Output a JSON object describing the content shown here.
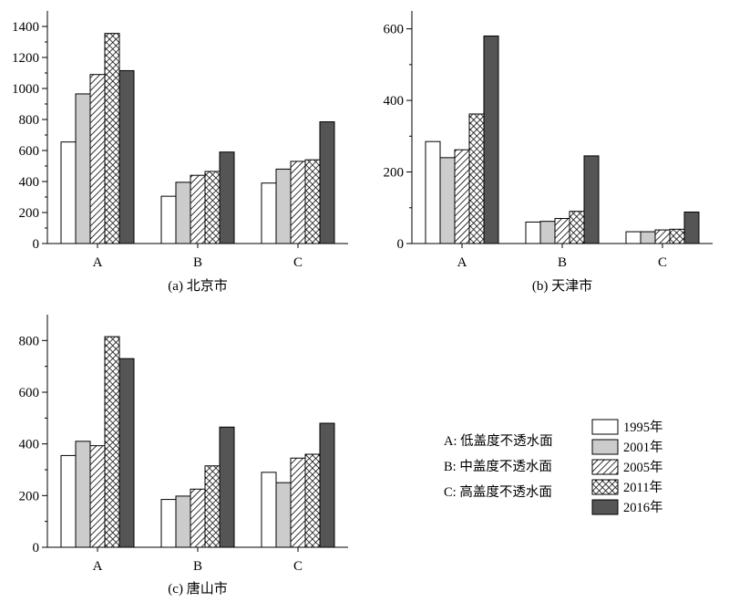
{
  "legend": {
    "series": [
      {
        "name": "1995年",
        "fill": "#ffffff",
        "pattern": "none"
      },
      {
        "name": "2001年",
        "fill": "#cccccc",
        "pattern": "none"
      },
      {
        "name": "2005年",
        "fill": "#ffffff",
        "pattern": "diagonal-hatch"
      },
      {
        "name": "2011年",
        "fill": "#ffffff",
        "pattern": "crosshatch"
      },
      {
        "name": "2016年",
        "fill": "#555555",
        "pattern": "none"
      }
    ],
    "category_key": [
      "A: 低盖度不透水面",
      "B: 中盖度不透水面",
      "C: 高盖度不透水面"
    ]
  },
  "chart_data": [
    {
      "type": "bar",
      "caption": "(a) 北京市",
      "categories": [
        "A",
        "B",
        "C"
      ],
      "series": [
        {
          "name": "1995年",
          "values": [
            655,
            305,
            390
          ]
        },
        {
          "name": "2001年",
          "values": [
            965,
            395,
            480
          ]
        },
        {
          "name": "2005年",
          "values": [
            1090,
            440,
            530
          ]
        },
        {
          "name": "2011年",
          "values": [
            1355,
            465,
            540
          ]
        },
        {
          "name": "2016年",
          "values": [
            1115,
            590,
            785
          ]
        }
      ],
      "ylim": [
        0,
        1500
      ],
      "yticks": [
        0,
        200,
        400,
        600,
        800,
        1000,
        1200,
        1400
      ]
    },
    {
      "type": "bar",
      "caption": "(b) 天津市",
      "categories": [
        "A",
        "B",
        "C"
      ],
      "series": [
        {
          "name": "1995年",
          "values": [
            285,
            60,
            33
          ]
        },
        {
          "name": "2001年",
          "values": [
            240,
            62,
            33
          ]
        },
        {
          "name": "2005年",
          "values": [
            262,
            70,
            38
          ]
        },
        {
          "name": "2011年",
          "values": [
            362,
            90,
            40
          ]
        },
        {
          "name": "2016年",
          "values": [
            580,
            245,
            88
          ]
        }
      ],
      "ylim": [
        0,
        650
      ],
      "yticks": [
        0,
        200,
        400,
        600
      ]
    },
    {
      "type": "bar",
      "caption": "(c) 唐山市",
      "categories": [
        "A",
        "B",
        "C"
      ],
      "series": [
        {
          "name": "1995年",
          "values": [
            355,
            185,
            290
          ]
        },
        {
          "name": "2001年",
          "values": [
            410,
            198,
            250
          ]
        },
        {
          "name": "2005年",
          "values": [
            393,
            225,
            345
          ]
        },
        {
          "name": "2011年",
          "values": [
            815,
            315,
            360
          ]
        },
        {
          "name": "2016年",
          "values": [
            730,
            465,
            480
          ]
        }
      ],
      "ylim": [
        0,
        900
      ],
      "yticks": [
        0,
        200,
        400,
        600,
        800
      ]
    }
  ]
}
